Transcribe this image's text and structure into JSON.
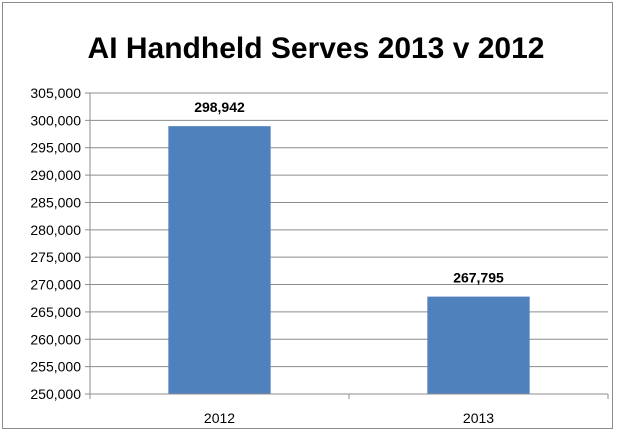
{
  "chart_data": {
    "type": "bar",
    "title": "AI Handheld Serves 2013 v 2012",
    "xlabel": "",
    "ylabel": "",
    "categories": [
      "2012",
      "2013"
    ],
    "values": [
      298942,
      267795
    ],
    "data_labels": [
      "298,942",
      "267,795"
    ],
    "ylim": [
      250000,
      305000
    ],
    "y_ticks": [
      "250,000",
      "255,000",
      "260,000",
      "265,000",
      "270,000",
      "275,000",
      "280,000",
      "285,000",
      "290,000",
      "295,000",
      "300,000",
      "305,000"
    ],
    "grid": true,
    "legend": "none",
    "bar_color": "#4f81bd"
  }
}
